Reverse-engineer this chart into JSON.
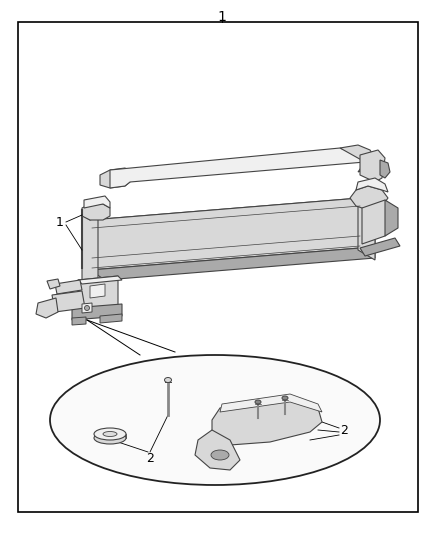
{
  "bg_color": "#ffffff",
  "border_color": "#000000",
  "line_color": "#444444",
  "dark_line": "#222222",
  "part_light": "#f0f0f0",
  "part_mid": "#d8d8d8",
  "part_dark": "#aaaaaa",
  "part_darker": "#888888",
  "title_label": "1",
  "label1": "1",
  "label2": "2",
  "label2b": "2",
  "figsize": [
    4.38,
    5.33
  ],
  "dpi": 100
}
